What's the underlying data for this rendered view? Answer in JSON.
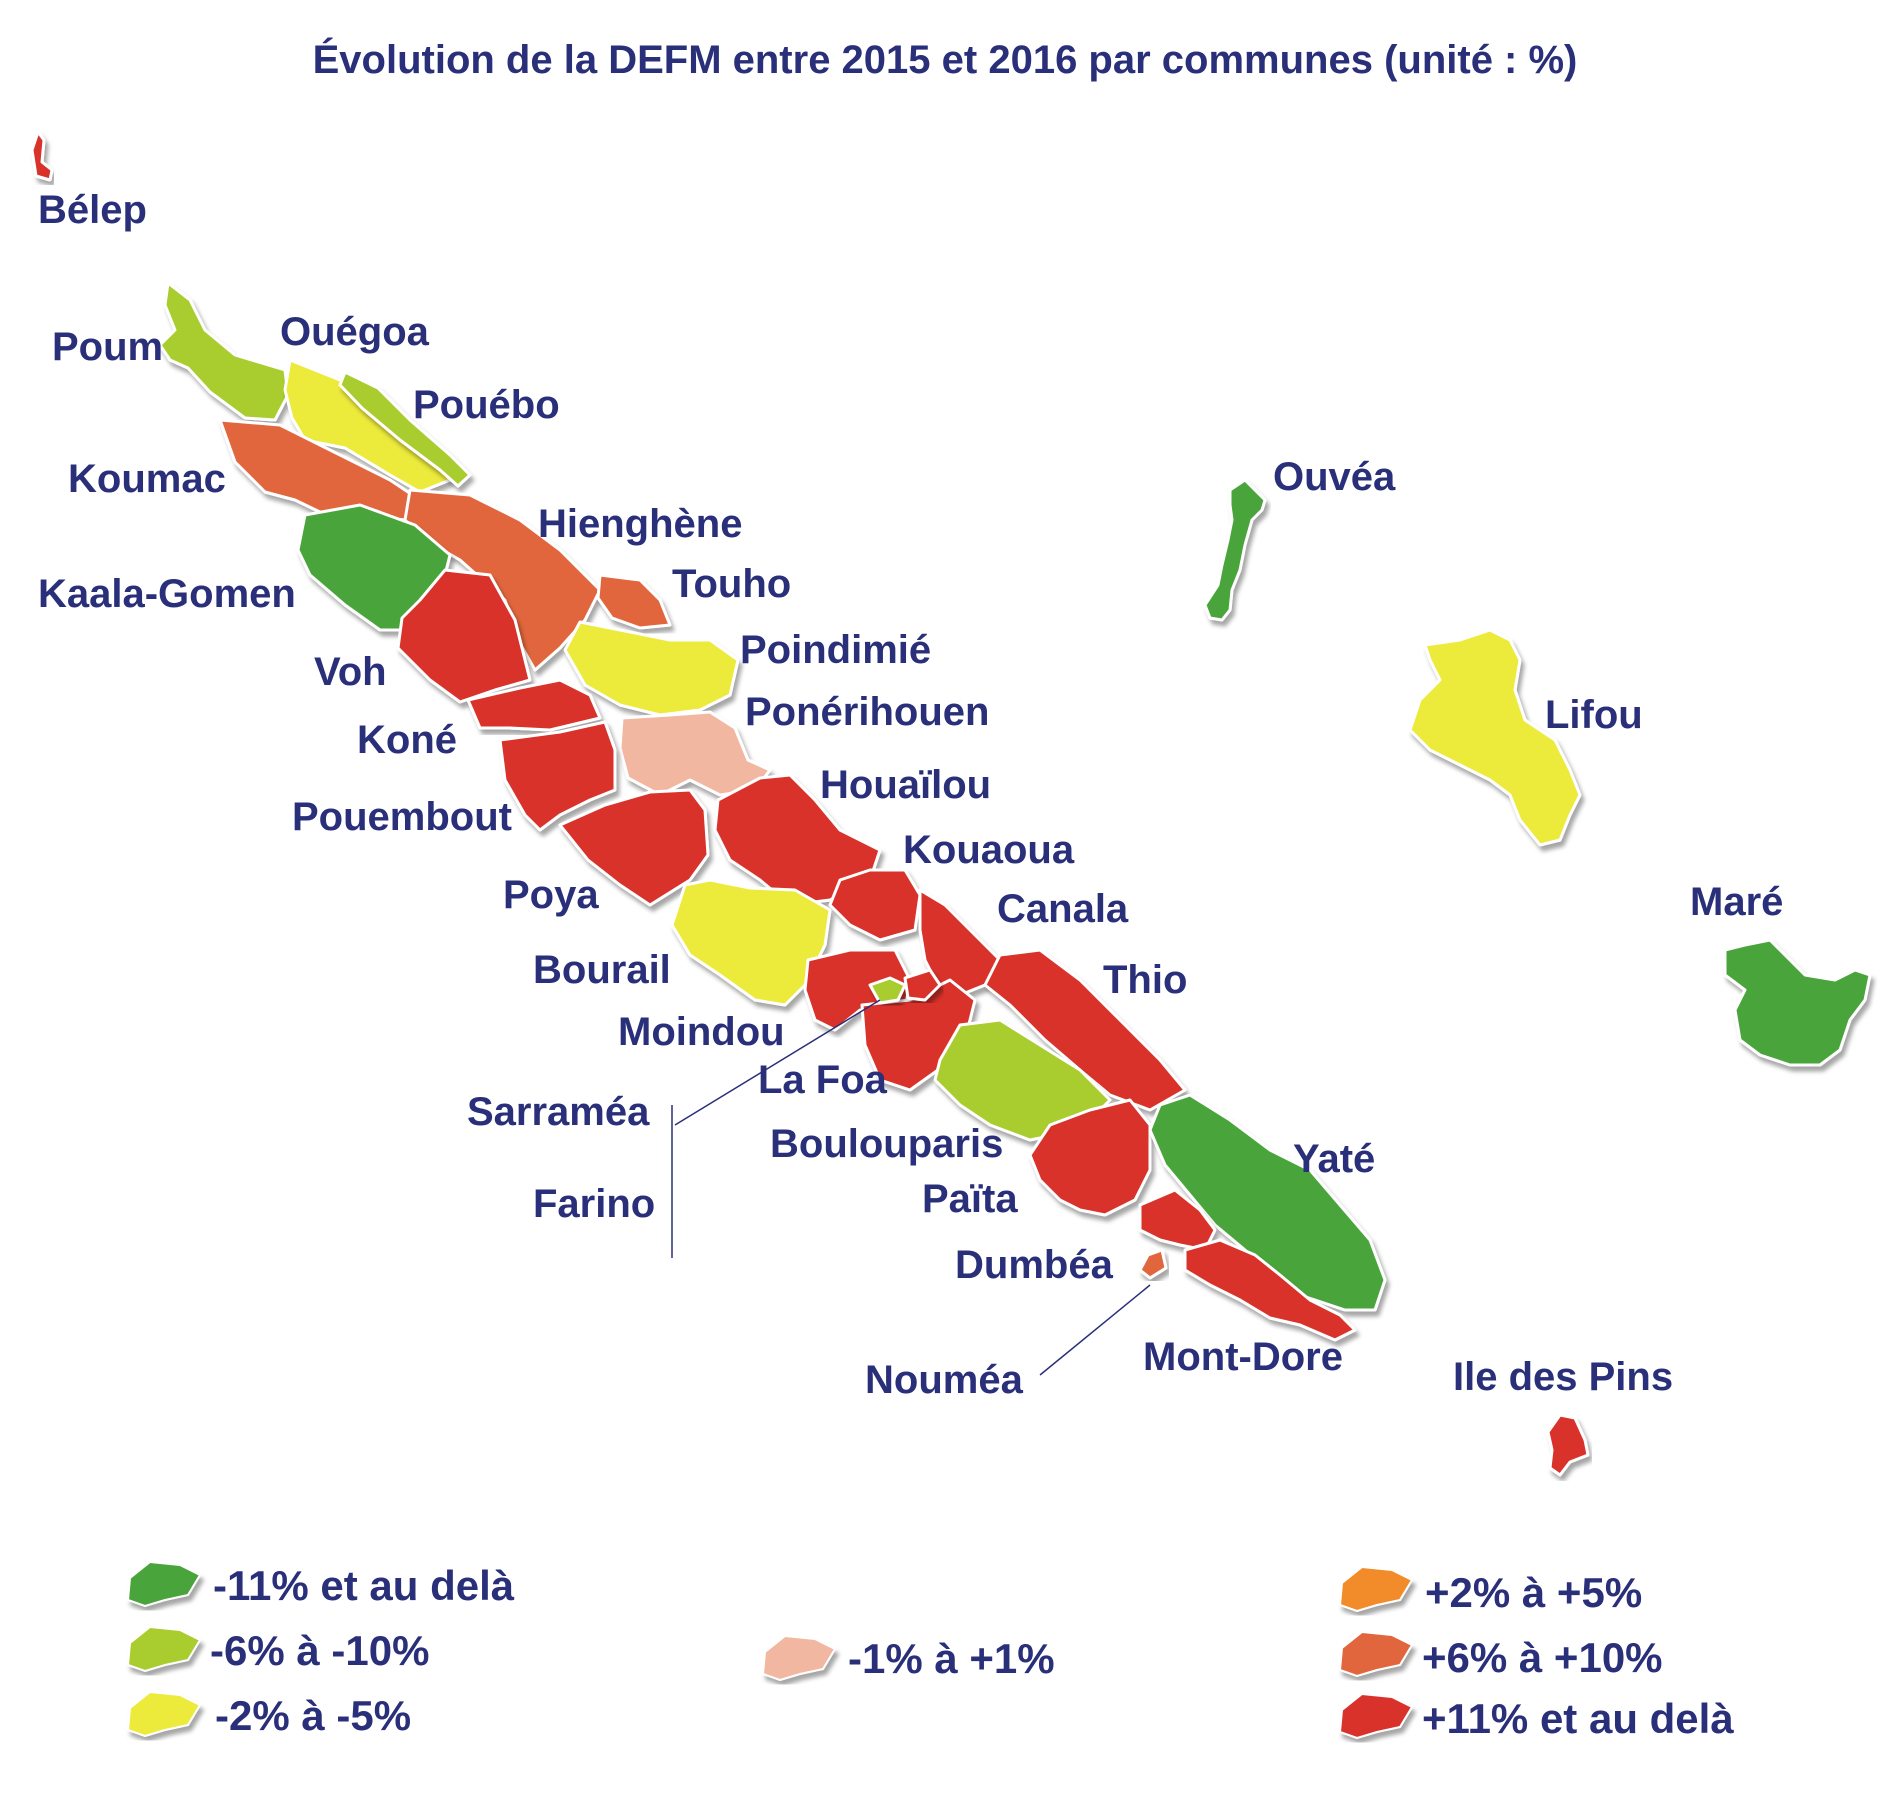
{
  "title": "Évolution de la DEFM entre 2015 et 2016 par communes (unité : %)",
  "colors": {
    "c1": "#4aa53a",
    "c2": "#a9cc2d",
    "c3": "#ecea3a",
    "c4": "#f2b7a0",
    "c5": "#f28c2a",
    "c6": "#e2663e",
    "c7": "#d9302c",
    "text": "#2a2f7a"
  },
  "legend": [
    {
      "cls": "c1",
      "label": "-11% et au delà"
    },
    {
      "cls": "c2",
      "label": "-6% à -10%"
    },
    {
      "cls": "c3",
      "label": "-2% à -5%"
    },
    {
      "cls": "c4",
      "label": "-1% à +1%"
    },
    {
      "cls": "c5",
      "label": "+2% à +5%"
    },
    {
      "cls": "c6",
      "label": "+6% à +10%"
    },
    {
      "cls": "c7",
      "label": "+11% et au delà"
    }
  ],
  "communes": [
    {
      "id": "belep",
      "name": "Bélep",
      "cls": "c7"
    },
    {
      "id": "poum",
      "name": "Poum",
      "cls": "c2"
    },
    {
      "id": "ouegoa",
      "name": "Ouégoa",
      "cls": "c3"
    },
    {
      "id": "pouebo",
      "name": "Pouébo",
      "cls": "c2"
    },
    {
      "id": "koumac",
      "name": "Koumac",
      "cls": "c6"
    },
    {
      "id": "hienghene",
      "name": "Hienghène",
      "cls": "c6"
    },
    {
      "id": "touho",
      "name": "Touho",
      "cls": "c6"
    },
    {
      "id": "kaala-gomen",
      "name": "Kaala-Gomen",
      "cls": "c1"
    },
    {
      "id": "voh",
      "name": "Voh",
      "cls": "c7"
    },
    {
      "id": "poindimie",
      "name": "Poindimié",
      "cls": "c3"
    },
    {
      "id": "ponerihouen",
      "name": "Ponérihouen",
      "cls": "c4"
    },
    {
      "id": "kone",
      "name": "Koné",
      "cls": "c7"
    },
    {
      "id": "houailou",
      "name": "Houaïlou",
      "cls": "c7"
    },
    {
      "id": "pouembout",
      "name": "Pouembout",
      "cls": "c7"
    },
    {
      "id": "kouaoua",
      "name": "Kouaoua",
      "cls": "c7"
    },
    {
      "id": "poya",
      "name": "Poya",
      "cls": "c7"
    },
    {
      "id": "canala",
      "name": "Canala",
      "cls": "c7"
    },
    {
      "id": "bourail",
      "name": "Bourail",
      "cls": "c3"
    },
    {
      "id": "thio",
      "name": "Thio",
      "cls": "c7"
    },
    {
      "id": "moindou",
      "name": "Moindou",
      "cls": "c7"
    },
    {
      "id": "la-foa",
      "name": "La Foa",
      "cls": "c7"
    },
    {
      "id": "sarramea",
      "name": "Sarraméa",
      "cls": "c2"
    },
    {
      "id": "farino",
      "name": "Farino",
      "cls": "c7"
    },
    {
      "id": "boulouparis",
      "name": "Boulouparis",
      "cls": "c2"
    },
    {
      "id": "paita",
      "name": "Païta",
      "cls": "c7"
    },
    {
      "id": "yate",
      "name": "Yaté",
      "cls": "c1"
    },
    {
      "id": "dumbea",
      "name": "Dumbéa",
      "cls": "c7"
    },
    {
      "id": "noumea",
      "name": "Nouméa",
      "cls": "c6"
    },
    {
      "id": "mont-dore",
      "name": "Mont-Dore",
      "cls": "c7"
    },
    {
      "id": "ouvea",
      "name": "Ouvéa",
      "cls": "c1"
    },
    {
      "id": "lifou",
      "name": "Lifou",
      "cls": "c3"
    },
    {
      "id": "mare",
      "name": "Maré",
      "cls": "c1"
    },
    {
      "id": "ile-des-pins",
      "name": "Ile des Pins",
      "cls": "c7"
    }
  ]
}
